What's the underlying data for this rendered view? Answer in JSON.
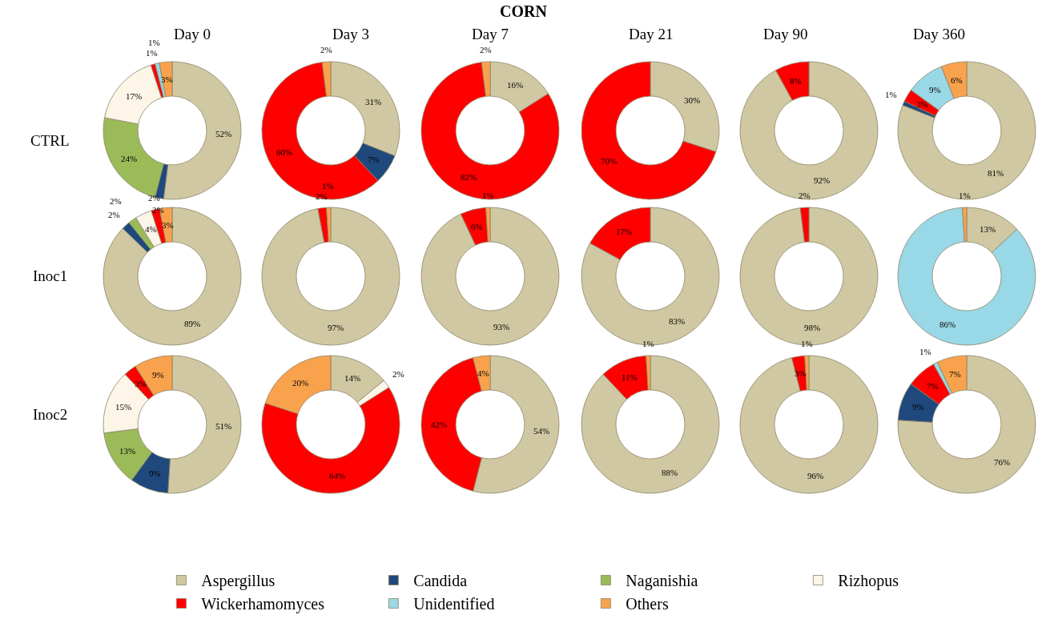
{
  "chart_data": [
    {
      "type": "other",
      "title": "CORN"
    },
    {
      "type": "donut",
      "title": "Day 0",
      "ylabel": "CTRL",
      "legend": "bottom",
      "categories": [
        "Aspergillus",
        "Candida",
        "Naganishia",
        "Rizhopus",
        "Wickerhamomyces",
        "Unidentified",
        "Others"
      ],
      "colors": [
        "#cfc8a2",
        "#1f497d",
        "#9bbb59",
        "#fdf5e8",
        "#ff0000",
        "#99d8e6",
        "#f9a24d"
      ],
      "values": [
        52,
        2,
        24,
        17,
        1,
        1,
        3
      ],
      "value_labels": [
        "52%",
        "2%",
        "24%",
        "17%",
        "1%",
        "1%",
        "3%"
      ]
    },
    {
      "type": "donut",
      "title": "Day 3",
      "colors": [
        "#cfc8a2",
        "#1f497d",
        "#9bbb59",
        "#fdf5e8",
        "#ff0000",
        "#99d8e6",
        "#f9a24d"
      ],
      "values": [
        31,
        7,
        0,
        0,
        60,
        0,
        2
      ],
      "value_labels": [
        "31%",
        "7%",
        null,
        null,
        "60%",
        null,
        "2%"
      ]
    },
    {
      "type": "donut",
      "title": "Day 7",
      "colors": [
        "#cfc8a2",
        "#1f497d",
        "#9bbb59",
        "#fdf5e8",
        "#ff0000",
        "#99d8e6",
        "#f9a24d"
      ],
      "values": [
        16,
        0,
        0,
        0,
        82,
        0,
        2
      ],
      "value_labels": [
        "16%",
        null,
        null,
        null,
        "82%",
        null,
        "2%"
      ]
    },
    {
      "type": "donut",
      "title": "Day 21",
      "colors": [
        "#cfc8a2",
        "#1f497d",
        "#9bbb59",
        "#fdf5e8",
        "#ff0000",
        "#99d8e6",
        "#f9a24d"
      ],
      "values": [
        30,
        0,
        0,
        0,
        70,
        0,
        0
      ],
      "value_labels": [
        "30%",
        null,
        null,
        null,
        "70%",
        null,
        null
      ]
    },
    {
      "type": "donut",
      "title": "Day 90",
      "colors": [
        "#cfc8a2",
        "#1f497d",
        "#9bbb59",
        "#fdf5e8",
        "#ff0000",
        "#99d8e6",
        "#f9a24d"
      ],
      "values": [
        92,
        0,
        0,
        0,
        8,
        0,
        0
      ],
      "value_labels": [
        "92%",
        null,
        null,
        null,
        "8%",
        null,
        null
      ]
    },
    {
      "type": "donut",
      "title": "Day 360",
      "colors": [
        "#cfc8a2",
        "#1f497d",
        "#9bbb59",
        "#fdf5e8",
        "#ff0000",
        "#99d8e6",
        "#f9a24d"
      ],
      "values": [
        81,
        1,
        0,
        0,
        3,
        9,
        6
      ],
      "value_labels": [
        "81%",
        "1%",
        null,
        null,
        "3%",
        "9%",
        "6%"
      ]
    },
    {
      "type": "donut",
      "ylabel": "Inoc1",
      "colors": [
        "#cfc8a2",
        "#1f497d",
        "#9bbb59",
        "#fdf5e8",
        "#ff0000",
        "#99d8e6",
        "#f9a24d"
      ],
      "values": [
        89,
        2,
        2,
        4,
        2,
        0,
        3
      ],
      "value_labels": [
        "89%",
        "2%",
        "2%",
        "4%",
        "2%",
        null,
        "3%"
      ]
    },
    {
      "type": "donut",
      "colors": [
        "#cfc8a2",
        "#1f497d",
        "#9bbb59",
        "#fdf5e8",
        "#ff0000",
        "#99d8e6",
        "#f9a24d"
      ],
      "values": [
        97,
        0,
        0,
        0,
        2,
        0,
        1
      ],
      "value_labels": [
        "97%",
        null,
        null,
        null,
        "2%",
        null,
        "1%"
      ]
    },
    {
      "type": "donut",
      "colors": [
        "#cfc8a2",
        "#1f497d",
        "#9bbb59",
        "#fdf5e8",
        "#ff0000",
        "#99d8e6",
        "#f9a24d"
      ],
      "values": [
        93,
        0,
        0,
        0,
        6,
        0,
        1
      ],
      "value_labels": [
        "93%",
        null,
        null,
        null,
        "6%",
        null,
        "1%"
      ]
    },
    {
      "type": "donut",
      "colors": [
        "#cfc8a2",
        "#1f497d",
        "#9bbb59",
        "#fdf5e8",
        "#ff0000",
        "#99d8e6",
        "#f9a24d"
      ],
      "values": [
        83,
        0,
        0,
        0,
        17,
        0,
        0
      ],
      "value_labels": [
        "83%",
        null,
        null,
        null,
        "17%",
        null,
        null
      ]
    },
    {
      "type": "donut",
      "colors": [
        "#cfc8a2",
        "#1f497d",
        "#9bbb59",
        "#fdf5e8",
        "#ff0000",
        "#99d8e6",
        "#f9a24d"
      ],
      "values": [
        98,
        0,
        0,
        0,
        2,
        0,
        0
      ],
      "value_labels": [
        "98%",
        null,
        null,
        null,
        "2%",
        null,
        null
      ]
    },
    {
      "type": "donut",
      "colors": [
        "#cfc8a2",
        "#1f497d",
        "#9bbb59",
        "#fdf5e8",
        "#ff0000",
        "#99d8e6",
        "#f9a24d"
      ],
      "values": [
        13,
        0,
        0,
        0,
        0,
        86,
        1
      ],
      "value_labels": [
        "13%",
        null,
        null,
        null,
        null,
        "86%",
        "1%"
      ]
    },
    {
      "type": "donut",
      "ylabel": "Inoc2",
      "colors": [
        "#cfc8a2",
        "#1f497d",
        "#9bbb59",
        "#fdf5e8",
        "#ff0000",
        "#99d8e6",
        "#f9a24d"
      ],
      "values": [
        51,
        9,
        13,
        15,
        3,
        0,
        9
      ],
      "value_labels": [
        "51%",
        "9%",
        "13%",
        "15%",
        "3%",
        null,
        "9%"
      ]
    },
    {
      "type": "donut",
      "colors": [
        "#cfc8a2",
        "#1f497d",
        "#9bbb59",
        "#fdf5e8",
        "#ff0000",
        "#99d8e6",
        "#f9a24d"
      ],
      "values": [
        14,
        0,
        0,
        2,
        64,
        0,
        20
      ],
      "value_labels": [
        "14%",
        null,
        null,
        "2%",
        "64%",
        null,
        "20%"
      ]
    },
    {
      "type": "donut",
      "colors": [
        "#cfc8a2",
        "#1f497d",
        "#9bbb59",
        "#fdf5e8",
        "#ff0000",
        "#99d8e6",
        "#f9a24d"
      ],
      "values": [
        54,
        0,
        0,
        0,
        42,
        0,
        4
      ],
      "value_labels": [
        "54%",
        null,
        null,
        null,
        "42%",
        null,
        "4%"
      ]
    },
    {
      "type": "donut",
      "colors": [
        "#cfc8a2",
        "#1f497d",
        "#9bbb59",
        "#fdf5e8",
        "#ff0000",
        "#99d8e6",
        "#f9a24d"
      ],
      "values": [
        88,
        0,
        0,
        0,
        11,
        0,
        1
      ],
      "value_labels": [
        "88%",
        null,
        null,
        null,
        "11%",
        null,
        "1%"
      ]
    },
    {
      "type": "donut",
      "colors": [
        "#cfc8a2",
        "#1f497d",
        "#9bbb59",
        "#fdf5e8",
        "#ff0000",
        "#99d8e6",
        "#f9a24d"
      ],
      "values": [
        96,
        0,
        0,
        0,
        3,
        0,
        1
      ],
      "value_labels": [
        "96%",
        null,
        null,
        null,
        "3%",
        null,
        "1%"
      ]
    },
    {
      "type": "donut",
      "colors": [
        "#cfc8a2",
        "#1f497d",
        "#9bbb59",
        "#fdf5e8",
        "#ff0000",
        "#99d8e6",
        "#f9a24d"
      ],
      "values": [
        76,
        9,
        0,
        0,
        7,
        1,
        7
      ],
      "value_labels": [
        "76%",
        "9%",
        null,
        null,
        "7%",
        "1%",
        "7%"
      ]
    }
  ]
}
